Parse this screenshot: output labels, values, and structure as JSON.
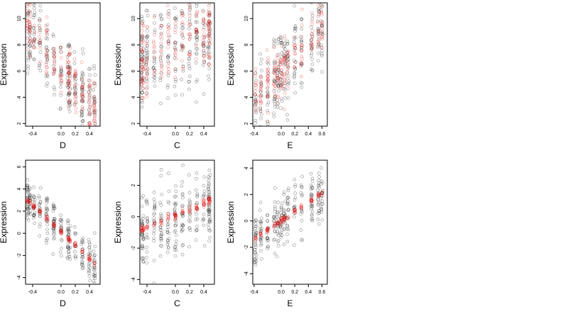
{
  "colors": {
    "observed": "#000000",
    "fitted": "#e00000",
    "background": "#ffffff"
  },
  "chart_data": [
    {
      "type": "scatter",
      "xlabel": "D",
      "ylabel": "Expression",
      "xlim": [
        -0.5,
        0.55
      ],
      "ylim": [
        1.8,
        11.2
      ],
      "xticks": [
        "-0.4",
        "0.0",
        "0.2",
        "0.4"
      ],
      "yticks": [
        "2",
        "4",
        "6",
        "8",
        "10"
      ],
      "trend": {
        "x_from": -0.47,
        "x_to": 0.52,
        "y_from": 9.3,
        "y_to": 2.8
      },
      "noise": 1.5,
      "fit_kind": "cloud"
    },
    {
      "type": "scatter",
      "xlabel": "C",
      "ylabel": "Expression",
      "xlim": [
        -0.5,
        0.55
      ],
      "ylim": [
        1.8,
        11.2
      ],
      "xticks": [
        "-0.4",
        "0.0",
        "0.2",
        "0.4"
      ],
      "yticks": [
        "2",
        "4",
        "6",
        "8",
        "10"
      ],
      "trend": {
        "x_from": -0.47,
        "x_to": 0.48,
        "y_from": 6.9,
        "y_to": 9.1
      },
      "noise": 2.0,
      "fit_kind": "cloud"
    },
    {
      "type": "scatter",
      "xlabel": "E",
      "ylabel": "Expression",
      "xlim": [
        -0.42,
        0.68
      ],
      "ylim": [
        1.8,
        11.2
      ],
      "xticks": [
        "-0.4",
        "0.0",
        "0.2",
        "0.4",
        "0.6"
      ],
      "yticks": [
        "2",
        "4",
        "6",
        "8",
        "10"
      ],
      "trend": {
        "x_from": -0.38,
        "x_to": 0.6,
        "y_from": 3.8,
        "y_to": 9.4
      },
      "noise": 1.6,
      "fit_kind": "cloud"
    },
    {
      "type": "scatter",
      "xlabel": "D",
      "ylabel": "Expression",
      "xlim": [
        -0.5,
        0.55
      ],
      "ylim": [
        -4.6,
        6.6
      ],
      "xticks": [
        "-0.4",
        "0.0",
        "0.2",
        "0.4"
      ],
      "yticks": [
        "-4",
        "-2",
        "0",
        "2",
        "4",
        "6"
      ],
      "trend": {
        "x_from": -0.47,
        "x_to": 0.52,
        "y_from": 3.0,
        "y_to": -3.0
      },
      "noise": 1.0,
      "fit_kind": "line"
    },
    {
      "type": "scatter",
      "xlabel": "C",
      "ylabel": "Expression",
      "xlim": [
        -0.5,
        0.55
      ],
      "ylim": [
        -4.3,
        3.6
      ],
      "xticks": [
        "-0.4",
        "0.0",
        "0.2",
        "0.4"
      ],
      "yticks": [
        "-4",
        "-2",
        "0",
        "2"
      ],
      "trend": {
        "x_from": -0.47,
        "x_to": 0.48,
        "y_from": -0.8,
        "y_to": 1.0
      },
      "noise": 1.4,
      "fit_kind": "line"
    },
    {
      "type": "scatter",
      "xlabel": "E",
      "ylabel": "Expression",
      "xlim": [
        -0.42,
        0.68
      ],
      "ylim": [
        -4.8,
        4.6
      ],
      "xticks": [
        "-0.4",
        "0.0",
        "0.2",
        "0.4",
        "0.6"
      ],
      "yticks": [
        "-4",
        "-2",
        "0",
        "2",
        "4"
      ],
      "trend": {
        "x_from": -0.38,
        "x_to": 0.6,
        "y_from": -1.3,
        "y_to": 2.1
      },
      "noise": 1.1,
      "fit_kind": "line"
    }
  ]
}
